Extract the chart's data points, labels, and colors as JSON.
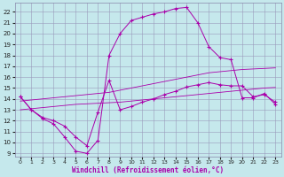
{
  "bg_color": "#c5e8ec",
  "line_color": "#aa00aa",
  "grid_color": "#9999bb",
  "xlabel": "Windchill (Refroidissement éolien,°C)",
  "xlim": [
    -0.5,
    23.5
  ],
  "ylim": [
    8.7,
    22.8
  ],
  "xticks": [
    0,
    1,
    2,
    3,
    4,
    5,
    6,
    7,
    8,
    9,
    10,
    11,
    12,
    13,
    14,
    15,
    16,
    17,
    18,
    19,
    20,
    21,
    22,
    23
  ],
  "yticks": [
    9,
    10,
    11,
    12,
    13,
    14,
    15,
    16,
    17,
    18,
    19,
    20,
    21,
    22
  ],
  "line1": {
    "x": [
      0,
      1,
      2,
      3,
      4,
      5,
      6,
      7,
      8,
      9,
      10,
      11,
      12,
      13,
      14,
      15,
      16,
      17,
      18,
      19,
      20,
      21,
      22,
      23
    ],
    "y": [
      13.0,
      13.1,
      13.2,
      13.3,
      13.4,
      13.5,
      13.55,
      13.6,
      13.65,
      13.7,
      13.8,
      13.9,
      14.0,
      14.1,
      14.2,
      14.3,
      14.4,
      14.5,
      14.6,
      14.7,
      14.8,
      14.9,
      15.0,
      15.05
    ]
  },
  "line2": {
    "x": [
      0,
      1,
      2,
      3,
      4,
      5,
      6,
      7,
      8,
      9,
      10,
      11,
      12,
      13,
      14,
      15,
      16,
      17,
      18,
      19,
      20,
      21,
      22,
      23
    ],
    "y": [
      13.8,
      13.9,
      14.0,
      14.1,
      14.2,
      14.3,
      14.4,
      14.5,
      14.6,
      14.8,
      15.0,
      15.2,
      15.4,
      15.6,
      15.8,
      16.0,
      16.2,
      16.4,
      16.5,
      16.6,
      16.7,
      16.75,
      16.8,
      16.85
    ]
  },
  "line3_x": [
    0,
    1,
    2,
    3,
    4,
    5,
    6,
    7,
    8,
    9,
    10,
    11,
    12,
    13,
    14,
    15,
    16,
    17,
    18,
    19,
    20,
    21,
    22,
    23
  ],
  "line3_y": [
    14.2,
    13.0,
    12.2,
    11.7,
    10.5,
    9.2,
    9.0,
    10.2,
    18.0,
    20.0,
    21.2,
    21.5,
    21.8,
    22.0,
    22.3,
    22.4,
    21.0,
    18.8,
    17.8,
    17.6,
    14.1,
    14.1,
    14.5,
    13.5
  ],
  "line4_x": [
    0,
    1,
    2,
    3,
    4,
    5,
    6,
    7,
    8,
    9,
    10,
    11,
    12,
    13,
    14,
    15,
    16,
    17,
    18,
    19,
    20,
    21,
    22,
    23
  ],
  "line4_y": [
    14.2,
    13.0,
    12.3,
    12.0,
    11.5,
    10.5,
    9.7,
    12.8,
    15.7,
    13.0,
    13.3,
    13.7,
    14.0,
    14.4,
    14.7,
    15.1,
    15.3,
    15.5,
    15.3,
    15.2,
    15.2,
    14.2,
    14.4,
    13.7
  ]
}
